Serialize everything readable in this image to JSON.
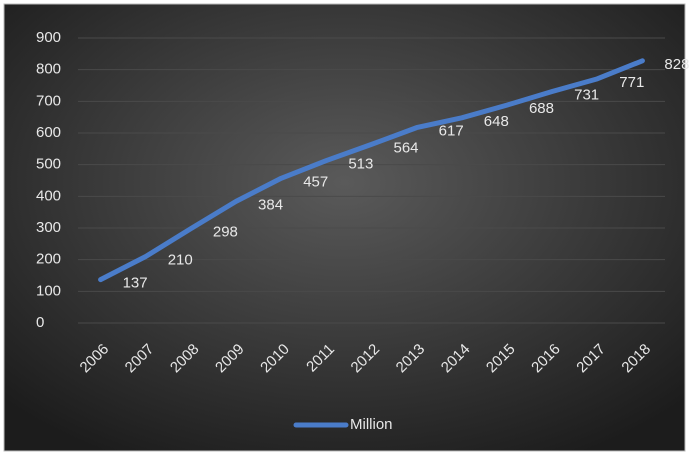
{
  "chart_data": {
    "type": "line",
    "categories": [
      "2006",
      "2007",
      "2008",
      "2009",
      "2010",
      "2011",
      "2012",
      "2013",
      "2014",
      "2015",
      "2016",
      "2017",
      "2018"
    ],
    "series": [
      {
        "name": "Million",
        "color": "#4a7cc9",
        "values": [
          137,
          210,
          298,
          384,
          457,
          513,
          564,
          617,
          648,
          688,
          731,
          771,
          828
        ]
      }
    ],
    "ylim": [
      0,
      900
    ],
    "yticks": [
      0,
      100,
      200,
      300,
      400,
      500,
      600,
      700,
      800,
      900
    ],
    "grid": true,
    "legend": "bottom"
  }
}
